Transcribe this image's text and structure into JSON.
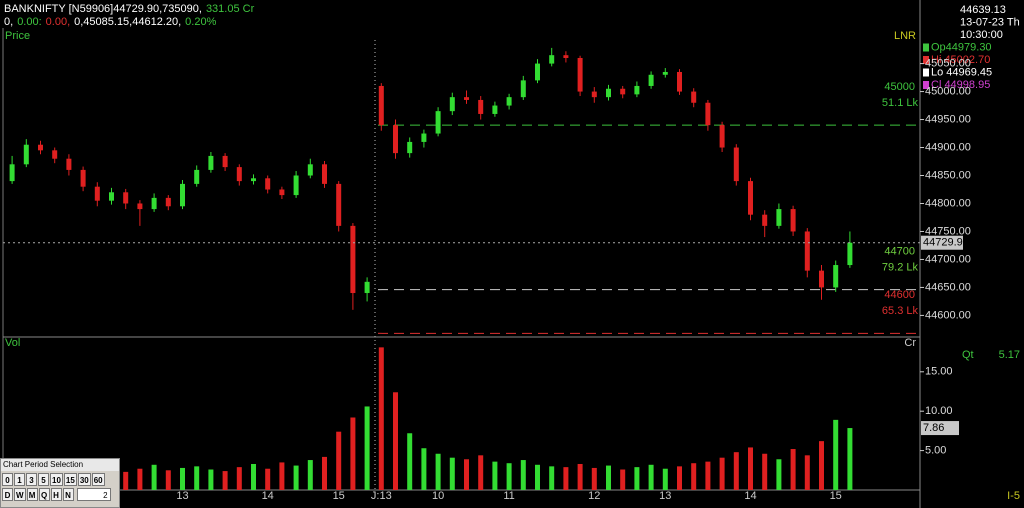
{
  "header": [
    [
      {
        "text": "BANKNIFTY [N59906]44729.90,735090,",
        "color": "#ffffff"
      },
      {
        "text": "331.05 Cr",
        "color": "#3ec43e"
      }
    ],
    [
      {
        "text": "0,",
        "color": "#ffffff"
      },
      {
        "text": "0.00:",
        "color": "#3ec43e"
      },
      {
        "text": "0.00,",
        "color": "#e03030"
      },
      {
        "text": "0,45085.15,44612.20,",
        "color": "#ffffff"
      },
      {
        "text": "0.20%",
        "color": "#3ec43e"
      }
    ]
  ],
  "info": [
    {
      "text": "44639.13",
      "color": "#ffffff"
    },
    {
      "text": "13-07-23 Th",
      "color": "#ffffff"
    },
    {
      "text": "10:30:00",
      "color": "#ffffff"
    },
    {
      "text": "Op44979.30",
      "color": "#3ec43e"
    },
    {
      "text": "Hi 45002.70",
      "color": "#e03030"
    },
    {
      "text": "Lo 44969.45",
      "color": "#ffffff"
    },
    {
      "text": "Cl 44998.95",
      "color": "#d040d0"
    }
  ],
  "quantity": {
    "label": "Qt",
    "value": "5.17"
  },
  "footer_label": "I-5",
  "period_selector": {
    "title": "Chart Period Selection",
    "intervals": [
      "0",
      "1",
      "3",
      "5",
      "10",
      "15",
      "30",
      "60"
    ],
    "ranges": [
      "D",
      "W",
      "M",
      "Q",
      "H",
      "N"
    ],
    "value": "2"
  },
  "chart_data": [
    {
      "type": "candlestick",
      "panel_label": "Price",
      "scale_label": "LNR",
      "categories": [
        null,
        null,
        null,
        null,
        null,
        null,
        null,
        null,
        null,
        null,
        null,
        null,
        "13",
        null,
        null,
        null,
        null,
        null,
        "14",
        null,
        null,
        null,
        null,
        "15",
        null,
        null,
        "J:13",
        null,
        null,
        null,
        "10",
        null,
        null,
        null,
        null,
        "11",
        null,
        null,
        null,
        null,
        null,
        "12",
        null,
        null,
        null,
        null,
        "13",
        null,
        null,
        null,
        null,
        null,
        "14",
        null,
        null,
        null,
        null,
        null,
        "15",
        null
      ],
      "open": [
        44840,
        44870,
        44905,
        44895,
        44880,
        44860,
        44830,
        44805,
        44820,
        44800,
        44790,
        44810,
        44795,
        44835,
        44860,
        44885,
        44865,
        44840,
        44845,
        44825,
        44815,
        44850,
        44870,
        44835,
        44760,
        44640,
        45010,
        44940,
        44890,
        44910,
        44925,
        44965,
        44990,
        44985,
        44960,
        44975,
        44990,
        45020,
        45050,
        45065,
        45060,
        45000,
        44990,
        45005,
        44995,
        45010,
        45030,
        45035,
        45000,
        44980,
        44940,
        44900,
        44840,
        44780,
        44760,
        44790,
        44750,
        44680,
        44650,
        44690
      ],
      "high": [
        44885,
        44915,
        44912,
        44900,
        44888,
        44866,
        44838,
        44828,
        44826,
        44806,
        44818,
        44815,
        44842,
        44868,
        44892,
        44890,
        44870,
        44852,
        44850,
        44830,
        44858,
        44880,
        44876,
        44840,
        44765,
        44668,
        45015,
        44950,
        44918,
        44932,
        44972,
        44998,
        45002,
        44992,
        44982,
        44996,
        45028,
        45058,
        45078,
        45072,
        45064,
        45008,
        45012,
        45010,
        45018,
        45036,
        45042,
        45040,
        45006,
        44985,
        44946,
        44906,
        44846,
        44788,
        44800,
        44796,
        44756,
        44690,
        44698,
        44750
      ],
      "low": [
        44835,
        44865,
        44888,
        44872,
        44850,
        44822,
        44795,
        44798,
        44790,
        44760,
        44785,
        44788,
        44790,
        44830,
        44855,
        44858,
        44832,
        44834,
        44818,
        44808,
        44810,
        44845,
        44828,
        44750,
        44610,
        44625,
        44930,
        44880,
        44882,
        44900,
        44920,
        44958,
        44978,
        44950,
        44955,
        44968,
        44985,
        45015,
        45045,
        45052,
        44992,
        44980,
        44984,
        44988,
        44990,
        45005,
        45025,
        44994,
        44972,
        44930,
        44892,
        44832,
        44770,
        44740,
        44755,
        44742,
        44668,
        44628,
        44642,
        44685
      ],
      "close": [
        44870,
        44905,
        44895,
        44880,
        44860,
        44830,
        44805,
        44820,
        44800,
        44790,
        44810,
        44795,
        44835,
        44860,
        44885,
        44865,
        44840,
        44845,
        44825,
        44815,
        44850,
        44870,
        44835,
        44760,
        44640,
        44660,
        44940,
        44890,
        44910,
        44925,
        44965,
        44990,
        44985,
        44960,
        44975,
        44990,
        45020,
        45050,
        45065,
        45060,
        45000,
        44990,
        45005,
        44995,
        45010,
        45030,
        45035,
        45000,
        44980,
        44940,
        44900,
        44840,
        44780,
        44760,
        44790,
        44750,
        44680,
        44650,
        44690,
        44729.9
      ],
      "up_color": "#33dd33",
      "down_color": "#e02020",
      "ylim": [
        44565,
        45110
      ],
      "yticks": [
        {
          "value": 44600,
          "label": "44600.00"
        },
        {
          "value": 44650,
          "label": "44650.00"
        },
        {
          "value": 44700,
          "label": "44700.00"
        },
        {
          "value": 44750,
          "label": "44750.00"
        },
        {
          "value": 44800,
          "label": "44800.00"
        },
        {
          "value": 44850,
          "label": "44850.00"
        },
        {
          "value": 44900,
          "label": "44900.00"
        },
        {
          "value": 44950,
          "label": "44950.00"
        },
        {
          "value": 45000,
          "label": "45000.00"
        },
        {
          "value": 45050,
          "label": "45050.00"
        }
      ],
      "levels": [
        {
          "label": "45000",
          "qty": "51.1 Lk",
          "price": 44940,
          "color": "#3ec43e",
          "label_color": "#3ec43e"
        },
        {
          "label": "44700",
          "qty": "79.2 Lk",
          "price": 44646,
          "color": "#cccccc",
          "label_color": "#6fcf3f"
        },
        {
          "label": "44600",
          "qty": "65.3 Lk",
          "price": 44568,
          "color": "#e03030",
          "label_color": "#e03030"
        }
      ]
    },
    {
      "type": "bar",
      "panel_label": "Vol",
      "scale_label": "Cr",
      "values": [
        2.5,
        3,
        2.8,
        2.2,
        2.6,
        3.1,
        2.4,
        2.9,
        2.3,
        2.7,
        3.2,
        2.5,
        2.8,
        3,
        2.6,
        2.4,
        2.9,
        3.3,
        2.7,
        3.5,
        3.1,
        3.8,
        4.2,
        7.4,
        9.2,
        10.6,
        18.1,
        12.4,
        7.2,
        5.3,
        4.6,
        4.1,
        3.9,
        4.4,
        3.6,
        3.4,
        3.8,
        3.2,
        3,
        2.9,
        3.3,
        2.8,
        3.1,
        2.6,
        2.9,
        3.2,
        2.7,
        3,
        3.4,
        3.6,
        4.1,
        4.8,
        5.4,
        4.6,
        3.9,
        5.2,
        4.4,
        6.2,
        8.9,
        7.86
      ],
      "ylim": [
        0,
        18.4
      ],
      "yticks": [
        {
          "value": 5,
          "label": "5.00"
        },
        {
          "value": 10,
          "label": "10.00"
        },
        {
          "value": 15,
          "label": "15.00"
        }
      ]
    }
  ]
}
